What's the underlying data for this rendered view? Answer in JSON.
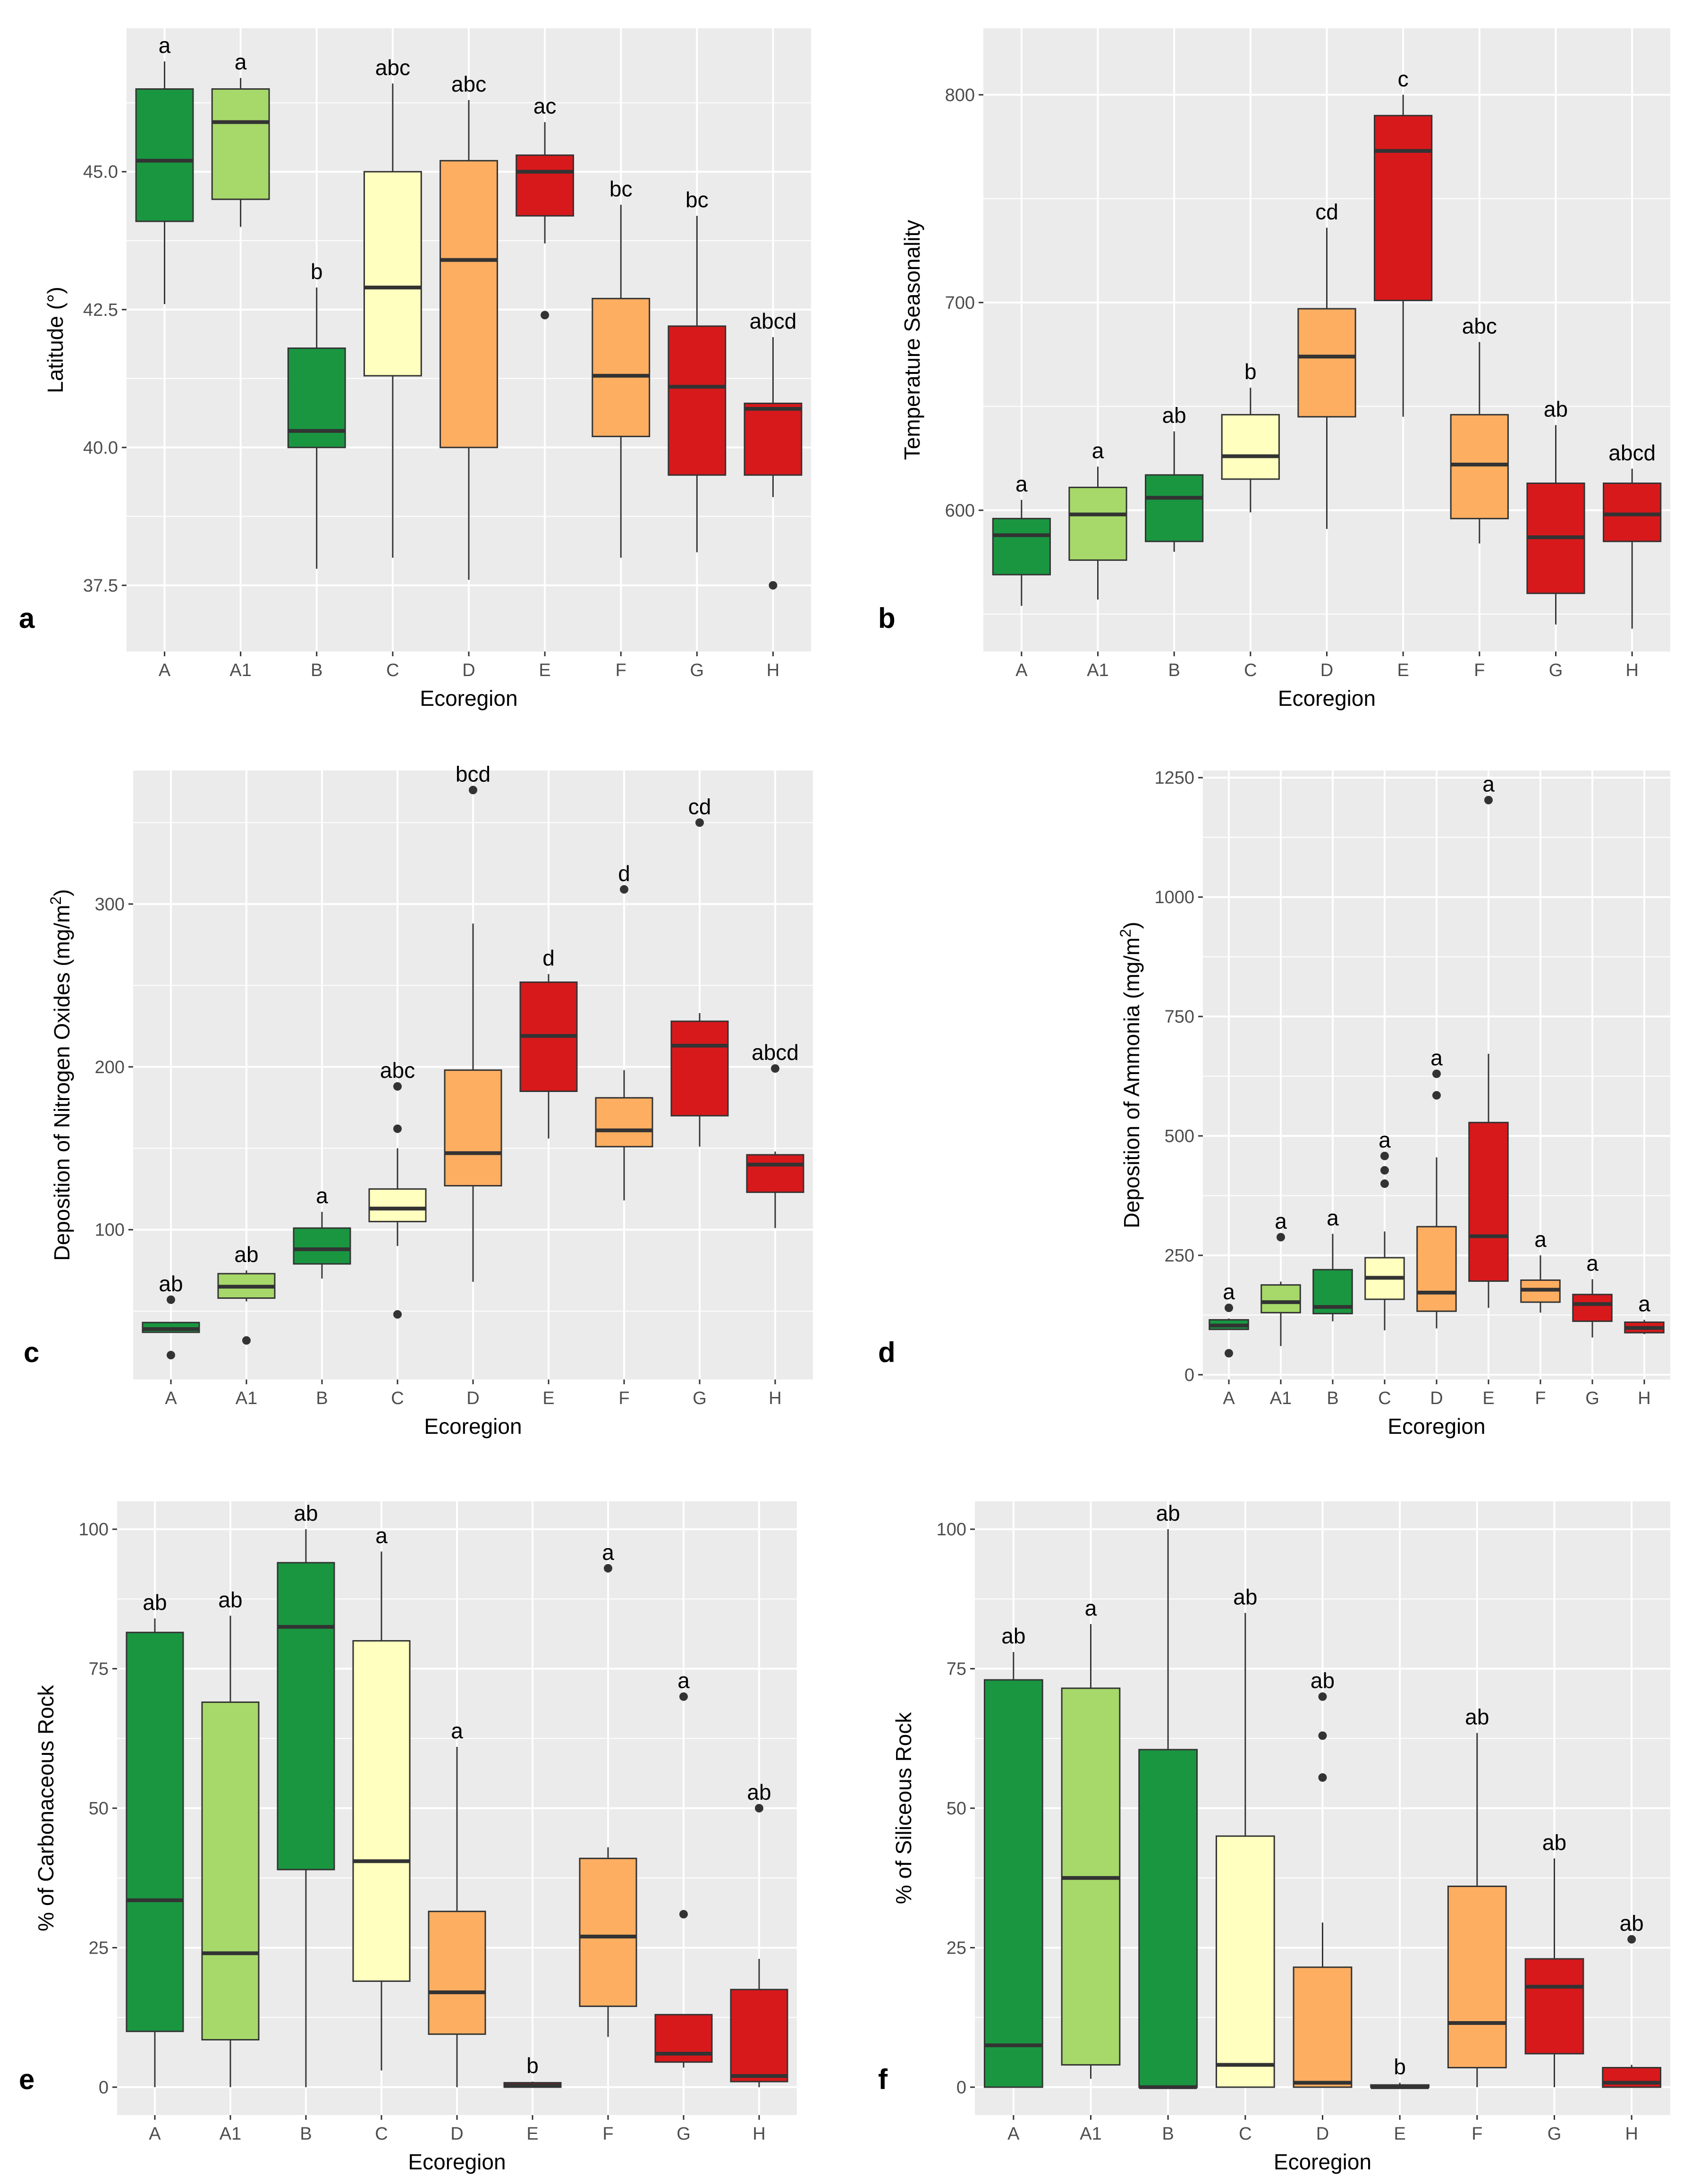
{
  "colors": {
    "panel_bg": "#EBEBEB",
    "grid": "#FFFFFF",
    "box_outline": "#333333",
    "A": "#1A9641",
    "A1": "#A6D96A",
    "B": "#1A9641",
    "C": "#FFFFBF",
    "D": "#FDAE61",
    "E": "#D7191C",
    "F": "#FDAE61",
    "G": "#D7191C",
    "H": "#D7191C"
  },
  "chart_data": [
    {
      "panel": "a",
      "type": "box",
      "title": "",
      "xlabel": "Ecoregion",
      "ylabel": "Latitude (°)",
      "categories": [
        "A",
        "A1",
        "B",
        "C",
        "D",
        "E",
        "F",
        "G",
        "H"
      ],
      "ylim": [
        36.3,
        47.6
      ],
      "yticks": [
        37.5,
        40.0,
        42.5,
        45.0
      ],
      "ytick_labels": [
        "37.5",
        "40.0",
        "42.5",
        "45.0"
      ],
      "boxes": [
        {
          "cat": "A",
          "min": 42.6,
          "q1": 44.1,
          "median": 45.2,
          "q3": 46.5,
          "max": 47.0,
          "outliers": [],
          "letter": "a"
        },
        {
          "cat": "A1",
          "min": 44.0,
          "q1": 44.5,
          "median": 45.9,
          "q3": 46.5,
          "max": 46.7,
          "outliers": [],
          "letter": "a"
        },
        {
          "cat": "B",
          "min": 37.8,
          "q1": 40.0,
          "median": 40.3,
          "q3": 41.8,
          "max": 42.9,
          "outliers": [],
          "letter": "b"
        },
        {
          "cat": "C",
          "min": 38.0,
          "q1": 41.3,
          "median": 42.9,
          "q3": 45.0,
          "max": 46.6,
          "outliers": [],
          "letter": "abc"
        },
        {
          "cat": "D",
          "min": 37.6,
          "q1": 40.0,
          "median": 43.4,
          "q3": 45.2,
          "max": 46.3,
          "outliers": [],
          "letter": "abc"
        },
        {
          "cat": "E",
          "min": 43.7,
          "q1": 44.2,
          "median": 45.0,
          "q3": 45.3,
          "max": 45.9,
          "outliers": [
            42.4
          ],
          "letter": "ac"
        },
        {
          "cat": "F",
          "min": 38.0,
          "q1": 40.2,
          "median": 41.3,
          "q3": 42.7,
          "max": 44.4,
          "outliers": [],
          "letter": "bc"
        },
        {
          "cat": "G",
          "min": 38.1,
          "q1": 39.5,
          "median": 41.1,
          "q3": 42.2,
          "max": 44.2,
          "outliers": [],
          "letter": "bc"
        },
        {
          "cat": "H",
          "min": 39.1,
          "q1": 39.5,
          "median": 40.7,
          "q3": 40.8,
          "max": 42.0,
          "outliers": [
            37.5
          ],
          "letter": "abcd"
        }
      ]
    },
    {
      "panel": "b",
      "type": "box",
      "title": "",
      "xlabel": "Ecoregion",
      "ylabel": "Temperature Seasonality",
      "categories": [
        "A",
        "A1",
        "B",
        "C",
        "D",
        "E",
        "F",
        "G",
        "H"
      ],
      "ylim": [
        532,
        832
      ],
      "yticks": [
        600,
        700,
        800
      ],
      "ytick_labels": [
        "600",
        "700",
        "800"
      ],
      "boxes": [
        {
          "cat": "A",
          "min": 554,
          "q1": 569,
          "median": 588,
          "q3": 596,
          "max": 605,
          "outliers": [],
          "letter": "a"
        },
        {
          "cat": "A1",
          "min": 557,
          "q1": 576,
          "median": 598,
          "q3": 611,
          "max": 621,
          "outliers": [],
          "letter": "a"
        },
        {
          "cat": "B",
          "min": 580,
          "q1": 585,
          "median": 606,
          "q3": 617,
          "max": 638,
          "outliers": [],
          "letter": "ab"
        },
        {
          "cat": "C",
          "min": 599,
          "q1": 615,
          "median": 626,
          "q3": 646,
          "max": 659,
          "outliers": [],
          "letter": "b"
        },
        {
          "cat": "D",
          "min": 591,
          "q1": 645,
          "median": 674,
          "q3": 697,
          "max": 736,
          "outliers": [],
          "letter": "cd"
        },
        {
          "cat": "E",
          "min": 645,
          "q1": 701,
          "median": 773,
          "q3": 790,
          "max": 800,
          "outliers": [],
          "letter": "c"
        },
        {
          "cat": "F",
          "min": 584,
          "q1": 596,
          "median": 622,
          "q3": 646,
          "max": 681,
          "outliers": [],
          "letter": "abc"
        },
        {
          "cat": "G",
          "min": 545,
          "q1": 560,
          "median": 587,
          "q3": 613,
          "max": 641,
          "outliers": [],
          "letter": "ab"
        },
        {
          "cat": "H",
          "min": 543,
          "q1": 585,
          "median": 598,
          "q3": 613,
          "max": 620,
          "outliers": [],
          "letter": "abcd"
        }
      ]
    },
    {
      "panel": "c",
      "type": "box",
      "title": "",
      "xlabel": "Ecoregion",
      "ylabel": "Deposition of Nitrogen Oxides  (mg/m²)",
      "ylabel_main": "Deposition of Nitrogen Oxides  (mg/m",
      "ylabel_sup": "2",
      "ylabel_end": ")",
      "categories": [
        "A",
        "A1",
        "B",
        "C",
        "D",
        "E",
        "F",
        "G",
        "H"
      ],
      "ylim": [
        8,
        382
      ],
      "yticks": [
        100,
        200,
        300
      ],
      "ytick_labels": [
        "100",
        "200",
        "300"
      ],
      "boxes": [
        {
          "cat": "A",
          "min": 37,
          "q1": 37,
          "median": 39,
          "q3": 43,
          "max": 43,
          "outliers": [
            57,
            23
          ],
          "letter": "ab"
        },
        {
          "cat": "A1",
          "min": 56,
          "q1": 58,
          "median": 65,
          "q3": 73,
          "max": 75,
          "outliers": [
            32
          ],
          "letter": "ab"
        },
        {
          "cat": "B",
          "min": 70,
          "q1": 79,
          "median": 88,
          "q3": 101,
          "max": 111,
          "outliers": [],
          "letter": "a"
        },
        {
          "cat": "C",
          "min": 90,
          "q1": 105,
          "median": 113,
          "q3": 125,
          "max": 150,
          "outliers": [
            188,
            162,
            48
          ],
          "letter": "abc"
        },
        {
          "cat": "D",
          "min": 68,
          "q1": 127,
          "median": 147,
          "q3": 198,
          "max": 288,
          "outliers": [
            370
          ],
          "letter": "bcd"
        },
        {
          "cat": "E",
          "min": 156,
          "q1": 185,
          "median": 219,
          "q3": 252,
          "max": 257,
          "outliers": [],
          "letter": "d"
        },
        {
          "cat": "F",
          "min": 118,
          "q1": 151,
          "median": 161,
          "q3": 181,
          "max": 198,
          "outliers": [
            309
          ],
          "letter": "d"
        },
        {
          "cat": "G",
          "min": 151,
          "q1": 170,
          "median": 213,
          "q3": 228,
          "max": 233,
          "outliers": [
            350
          ],
          "letter": "cd"
        },
        {
          "cat": "H",
          "min": 101,
          "q1": 123,
          "median": 140,
          "q3": 146,
          "max": 148,
          "outliers": [
            199
          ],
          "letter": "abcd"
        }
      ]
    },
    {
      "panel": "d",
      "type": "box",
      "title": "",
      "xlabel": "Ecoregion",
      "ylabel": "Deposition of Ammonia  (mg/m²)",
      "ylabel_main": "Deposition of Ammonia  (mg/m",
      "ylabel_sup": "2",
      "ylabel_end": ")",
      "categories": [
        "A",
        "A1",
        "B",
        "C",
        "D",
        "E",
        "F",
        "G",
        "H"
      ],
      "ylim": [
        -10,
        1265
      ],
      "yticks": [
        0,
        250,
        500,
        750,
        1000,
        1250
      ],
      "ytick_labels": [
        "0",
        "250",
        "500",
        "750",
        "1000",
        "1250"
      ],
      "boxes": [
        {
          "cat": "A",
          "min": 95,
          "q1": 95,
          "median": 103,
          "q3": 115,
          "max": 118,
          "outliers": [
            140,
            45
          ],
          "letter": "a"
        },
        {
          "cat": "A1",
          "min": 60,
          "q1": 130,
          "median": 152,
          "q3": 188,
          "max": 195,
          "outliers": [
            288
          ],
          "letter": "a"
        },
        {
          "cat": "B",
          "min": 112,
          "q1": 128,
          "median": 142,
          "q3": 220,
          "max": 295,
          "outliers": [],
          "letter": "a"
        },
        {
          "cat": "C",
          "min": 93,
          "q1": 158,
          "median": 203,
          "q3": 245,
          "max": 300,
          "outliers": [
            458,
            428,
            400
          ],
          "letter": "a"
        },
        {
          "cat": "D",
          "min": 97,
          "q1": 133,
          "median": 172,
          "q3": 310,
          "max": 455,
          "outliers": [
            630,
            585
          ],
          "letter": "a"
        },
        {
          "cat": "E",
          "min": 140,
          "q1": 196,
          "median": 290,
          "q3": 528,
          "max": 672,
          "outliers": [
            1203
          ],
          "letter": "a"
        },
        {
          "cat": "F",
          "min": 130,
          "q1": 152,
          "median": 178,
          "q3": 198,
          "max": 250,
          "outliers": [],
          "letter": "a"
        },
        {
          "cat": "G",
          "min": 78,
          "q1": 112,
          "median": 148,
          "q3": 168,
          "max": 200,
          "outliers": [],
          "letter": "a"
        },
        {
          "cat": "H",
          "min": 85,
          "q1": 88,
          "median": 98,
          "q3": 110,
          "max": 115,
          "outliers": [],
          "letter": "a"
        }
      ]
    },
    {
      "panel": "e",
      "type": "box",
      "title": "",
      "xlabel": "Ecoregion",
      "ylabel": "% of Carbonaceous Rock",
      "categories": [
        "A",
        "A1",
        "B",
        "C",
        "D",
        "E",
        "F",
        "G",
        "H"
      ],
      "ylim": [
        -5,
        105
      ],
      "yticks": [
        0,
        25,
        50,
        75,
        100
      ],
      "ytick_labels": [
        "0",
        "25",
        "50",
        "75",
        "100"
      ],
      "boxes": [
        {
          "cat": "A",
          "min": 0,
          "q1": 10,
          "median": 33.5,
          "q3": 81.5,
          "max": 84,
          "outliers": [],
          "letter": "ab"
        },
        {
          "cat": "A1",
          "min": 0,
          "q1": 8.5,
          "median": 24,
          "q3": 69,
          "max": 84.5,
          "outliers": [],
          "letter": "ab"
        },
        {
          "cat": "B",
          "min": 0,
          "q1": 39,
          "median": 82.5,
          "q3": 94,
          "max": 100,
          "outliers": [],
          "letter": "ab"
        },
        {
          "cat": "C",
          "min": 3,
          "q1": 19,
          "median": 40.5,
          "q3": 80,
          "max": 96,
          "outliers": [],
          "letter": "a"
        },
        {
          "cat": "D",
          "min": 0,
          "q1": 9.5,
          "median": 17,
          "q3": 31.5,
          "max": 61,
          "outliers": [],
          "letter": "a"
        },
        {
          "cat": "E",
          "min": 0,
          "q1": 0,
          "median": 0.3,
          "q3": 0.8,
          "max": 1,
          "outliers": [],
          "letter": "b"
        },
        {
          "cat": "F",
          "min": 9,
          "q1": 14.5,
          "median": 27,
          "q3": 41,
          "max": 43,
          "outliers": [
            93
          ],
          "letter": "a"
        },
        {
          "cat": "G",
          "min": 3.5,
          "q1": 4.5,
          "median": 6,
          "q3": 13,
          "max": 13,
          "outliers": [
            70,
            31
          ],
          "letter": "a"
        },
        {
          "cat": "H",
          "min": 0,
          "q1": 1,
          "median": 2,
          "q3": 17.5,
          "max": 23,
          "outliers": [
            50
          ],
          "letter": "ab"
        }
      ]
    },
    {
      "panel": "f",
      "type": "box",
      "title": "",
      "xlabel": "Ecoregion",
      "ylabel": "% of Siliceous Rock",
      "categories": [
        "A",
        "A1",
        "B",
        "C",
        "D",
        "E",
        "F",
        "G",
        "H"
      ],
      "ylim": [
        -5,
        105
      ],
      "yticks": [
        0,
        25,
        50,
        75,
        100
      ],
      "ytick_labels": [
        "0",
        "25",
        "50",
        "75",
        "100"
      ],
      "boxes": [
        {
          "cat": "A",
          "min": 0,
          "q1": 0,
          "median": 7.5,
          "q3": 73,
          "max": 78,
          "outliers": [],
          "letter": "ab"
        },
        {
          "cat": "A1",
          "min": 1.5,
          "q1": 4,
          "median": 37.5,
          "q3": 71.5,
          "max": 83,
          "outliers": [],
          "letter": "a"
        },
        {
          "cat": "B",
          "min": 0,
          "q1": 0,
          "median": 0,
          "q3": 60.5,
          "max": 100,
          "outliers": [],
          "letter": "ab"
        },
        {
          "cat": "C",
          "min": 0,
          "q1": 0,
          "median": 4,
          "q3": 45,
          "max": 85,
          "outliers": [],
          "letter": "ab"
        },
        {
          "cat": "D",
          "min": 0,
          "q1": 0,
          "median": 0.8,
          "q3": 21.5,
          "max": 29.5,
          "outliers": [
            70,
            63,
            55.5
          ],
          "letter": "ab"
        },
        {
          "cat": "E",
          "min": 0,
          "q1": 0,
          "median": 0,
          "q3": 0.4,
          "max": 0.8,
          "outliers": [],
          "letter": "b"
        },
        {
          "cat": "F",
          "min": 0,
          "q1": 3.5,
          "median": 11.5,
          "q3": 36,
          "max": 63.5,
          "outliers": [],
          "letter": "ab"
        },
        {
          "cat": "G",
          "min": 0,
          "q1": 6,
          "median": 18,
          "q3": 23,
          "max": 41,
          "outliers": [],
          "letter": "ab"
        },
        {
          "cat": "H",
          "min": 0,
          "q1": 0,
          "median": 0.8,
          "q3": 3.5,
          "max": 4,
          "outliers": [
            26.5
          ],
          "letter": "ab"
        }
      ]
    }
  ]
}
